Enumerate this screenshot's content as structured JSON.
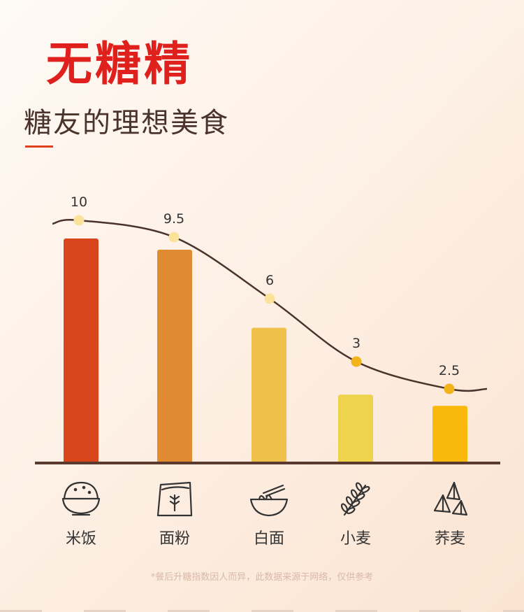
{
  "header": {
    "title": "无糖精",
    "subtitle": "糖友的理想美食"
  },
  "footnote": "*餐后升糖指数因人而异，此数据来源于网络，仅供参考",
  "colors": {
    "title": "#e0201d",
    "axis": "#5a3a2e",
    "curve": "#4a332a",
    "dot_light": "#fbe29a",
    "dot_bright": "#f3b31a"
  },
  "chart_data": {
    "type": "bar",
    "categories": [
      "米饭",
      "面粉",
      "白面",
      "小麦",
      "荞麦"
    ],
    "values": [
      10,
      9.5,
      6,
      3,
      2.5
    ],
    "bar_colors": [
      "#d9461b",
      "#e08a32",
      "#efc14a",
      "#eed34c",
      "#f8b90c"
    ],
    "icons": [
      "rice-bowl-icon",
      "flour-bag-icon",
      "noodle-bowl-icon",
      "wheat-icon",
      "buckwheat-icon"
    ],
    "value_labels": [
      "10",
      "9.5",
      "6",
      "3",
      "2.5"
    ],
    "trend_line": true,
    "ylim": [
      0,
      10
    ],
    "grid": false
  }
}
